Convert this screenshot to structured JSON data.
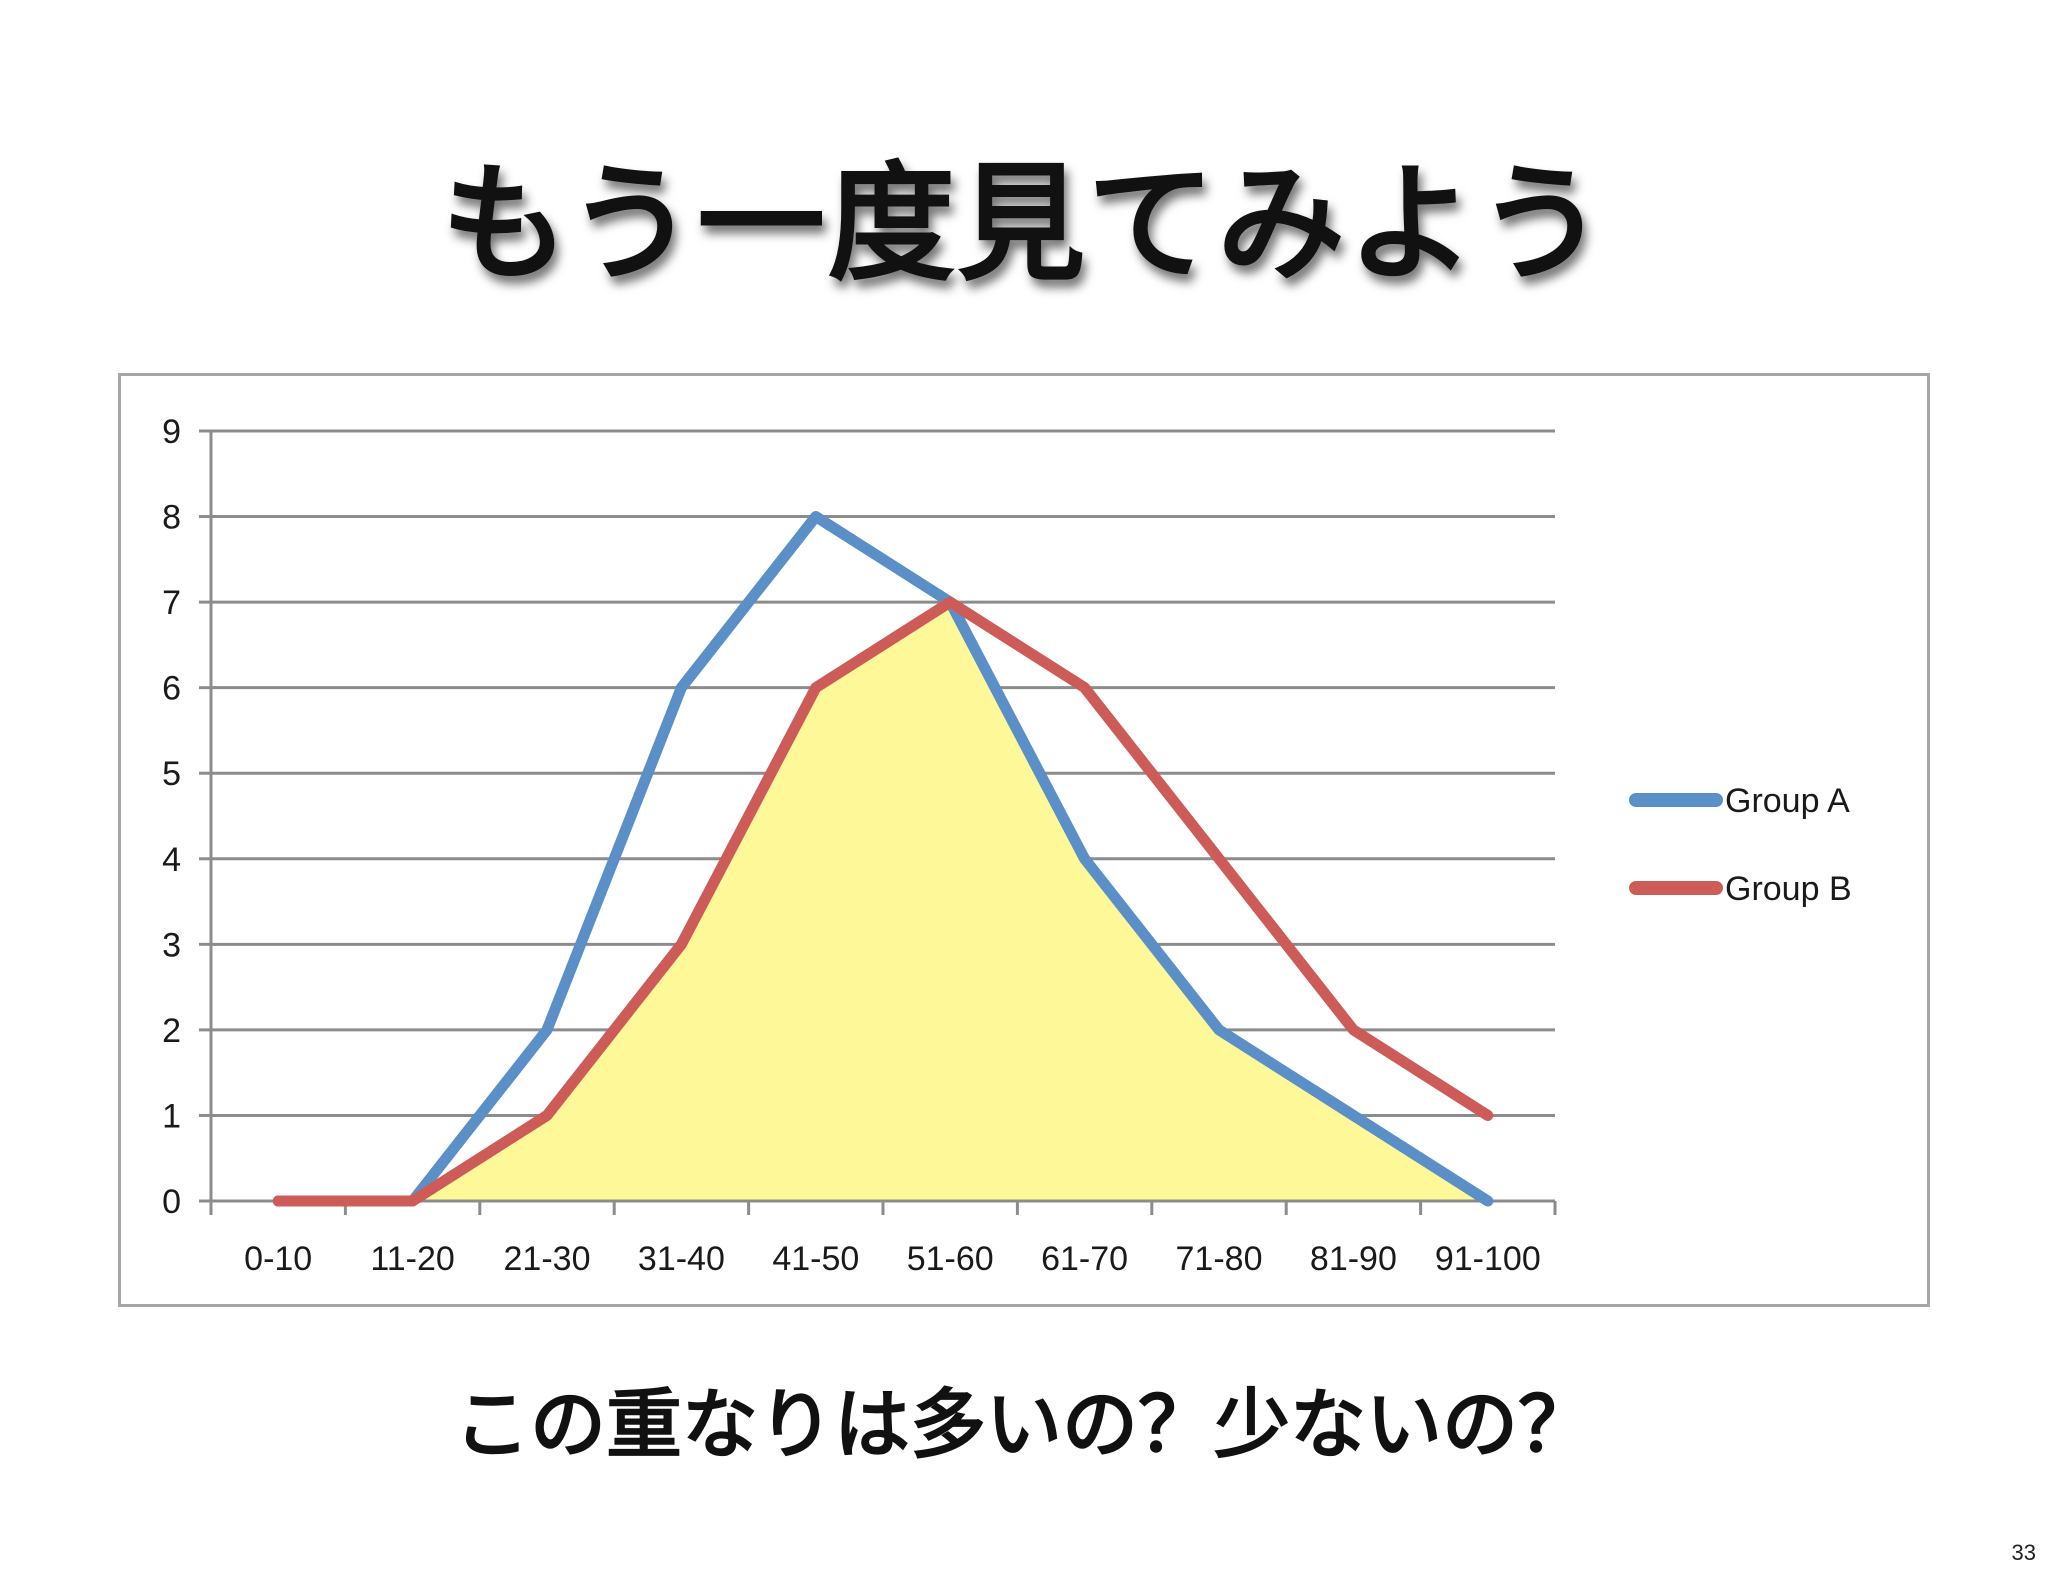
{
  "slide": {
    "title": "もう一度見てみよう",
    "subtitle": "この重なりは多いの？少ないの？",
    "page_number": "33"
  },
  "colors": {
    "group_a": "#5b8fc7",
    "group_b": "#cd5c59",
    "overlap_fill": "#fff899",
    "grid": "#8c8c8c"
  },
  "chart_data": {
    "type": "line",
    "categories": [
      "0-10",
      "11-20",
      "21-30",
      "31-40",
      "41-50",
      "51-60",
      "61-70",
      "71-80",
      "81-90",
      "91-100"
    ],
    "series": [
      {
        "name": "Group A",
        "values": [
          0,
          0,
          2,
          6,
          8,
          7,
          4,
          2,
          1,
          0
        ]
      },
      {
        "name": "Group B",
        "values": [
          0,
          0,
          1,
          3,
          6,
          7,
          6,
          4,
          2,
          1
        ]
      }
    ],
    "overlap_shaded": true,
    "y_ticks": [
      0,
      1,
      2,
      3,
      4,
      5,
      6,
      7,
      8,
      9
    ],
    "ylim": [
      0,
      9
    ],
    "grid": true,
    "legend_position": "right",
    "title": "",
    "xlabel": "",
    "ylabel": ""
  }
}
